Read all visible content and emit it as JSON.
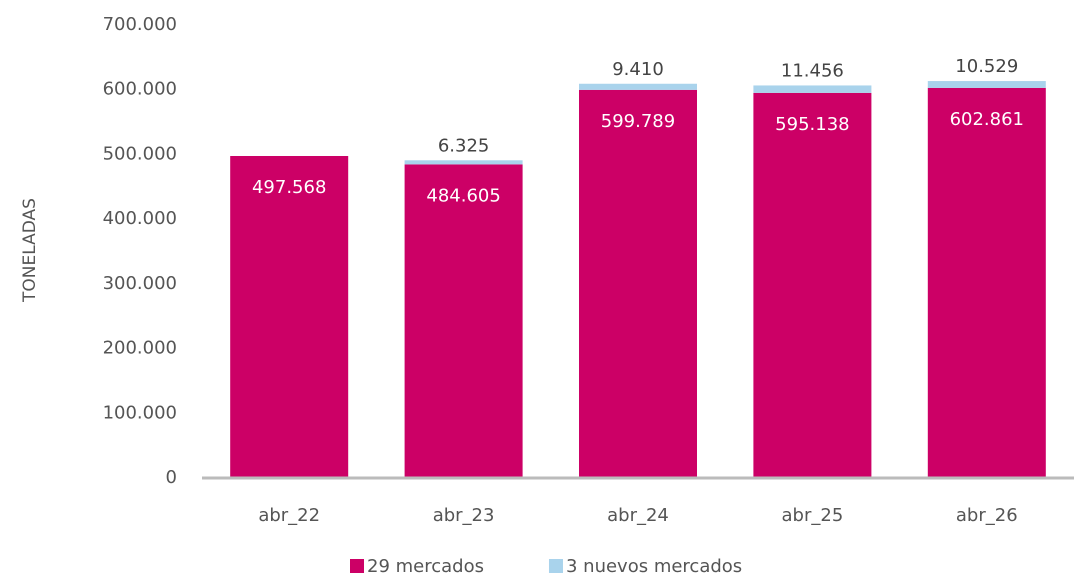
{
  "chart_data": {
    "type": "stacked_bar",
    "ylabel": "TONELADAS",
    "categories": [
      "abr_22",
      "abr_23",
      "abr_24",
      "abr_25",
      "abr_26"
    ],
    "series": [
      {
        "name": "29 mercados",
        "color": "#cc0066",
        "values": [
          497568,
          484605,
          599789,
          595138,
          602861
        ],
        "value_labels": [
          "497.568",
          "484.605",
          "599.789",
          "595.138",
          "602.861"
        ]
      },
      {
        "name": "3 nuevos mercados",
        "color": "#a9d3ec",
        "values": [
          null,
          6325,
          9410,
          11456,
          10529
        ],
        "value_labels": [
          null,
          "6.325",
          "9.410",
          "11.456",
          "10.529"
        ]
      }
    ],
    "ylim": [
      0,
      700000
    ],
    "yticks": [
      0,
      {
        "value": 100000,
        "label": "100.000"
      },
      {
        "value": 200000,
        "label": "200.000"
      },
      {
        "value": 300000,
        "label": "300.000"
      },
      {
        "value": 400000,
        "label": "400.000"
      },
      {
        "value": 500000,
        "label": "500.000"
      },
      {
        "value": 600000,
        "label": "600.000"
      },
      {
        "value": 700000,
        "label": "700.000"
      }
    ],
    "grid": false,
    "legend": "bottom"
  }
}
